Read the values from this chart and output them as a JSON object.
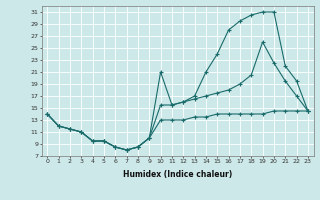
{
  "title": "",
  "xlabel": "Humidex (Indice chaleur)",
  "background_color": "#cde8e8",
  "line_color": "#1a6b6b",
  "grid_color": "#b0d8d8",
  "xlim": [
    -0.5,
    23.5
  ],
  "ylim": [
    7,
    32
  ],
  "yticks": [
    7,
    9,
    11,
    13,
    15,
    17,
    19,
    21,
    23,
    25,
    27,
    29,
    31
  ],
  "xticks": [
    0,
    1,
    2,
    3,
    4,
    5,
    6,
    7,
    8,
    9,
    10,
    11,
    12,
    13,
    14,
    15,
    16,
    17,
    18,
    19,
    20,
    21,
    22,
    23
  ],
  "line1_x": [
    0,
    1,
    2,
    3,
    4,
    5,
    6,
    7,
    8,
    9,
    10,
    11,
    12,
    13,
    14,
    15,
    16,
    17,
    18,
    19,
    20,
    21,
    22,
    23
  ],
  "line1_y": [
    14,
    12,
    11.5,
    11,
    9.5,
    9.5,
    8.5,
    8,
    8.5,
    10,
    21,
    15.5,
    16,
    17,
    21,
    24,
    28,
    29.5,
    30.5,
    31,
    31,
    22,
    19.5,
    14.5
  ],
  "line2_x": [
    0,
    1,
    2,
    3,
    4,
    5,
    6,
    7,
    8,
    9,
    10,
    11,
    12,
    13,
    14,
    15,
    16,
    17,
    18,
    19,
    20,
    21,
    22,
    23
  ],
  "line2_y": [
    14,
    12,
    11.5,
    11,
    9.5,
    9.5,
    8.5,
    8,
    8.5,
    10,
    15.5,
    15.5,
    16,
    16.5,
    17,
    17.5,
    18,
    19,
    20.5,
    26,
    22.5,
    19.5,
    17,
    14.5
  ],
  "line3_x": [
    0,
    1,
    2,
    3,
    4,
    5,
    6,
    7,
    8,
    9,
    10,
    11,
    12,
    13,
    14,
    15,
    16,
    17,
    18,
    19,
    20,
    21,
    22,
    23
  ],
  "line3_y": [
    14,
    12,
    11.5,
    11,
    9.5,
    9.5,
    8.5,
    8,
    8.5,
    10,
    13,
    13,
    13,
    13.5,
    13.5,
    14,
    14,
    14,
    14,
    14,
    14.5,
    14.5,
    14.5,
    14.5
  ]
}
